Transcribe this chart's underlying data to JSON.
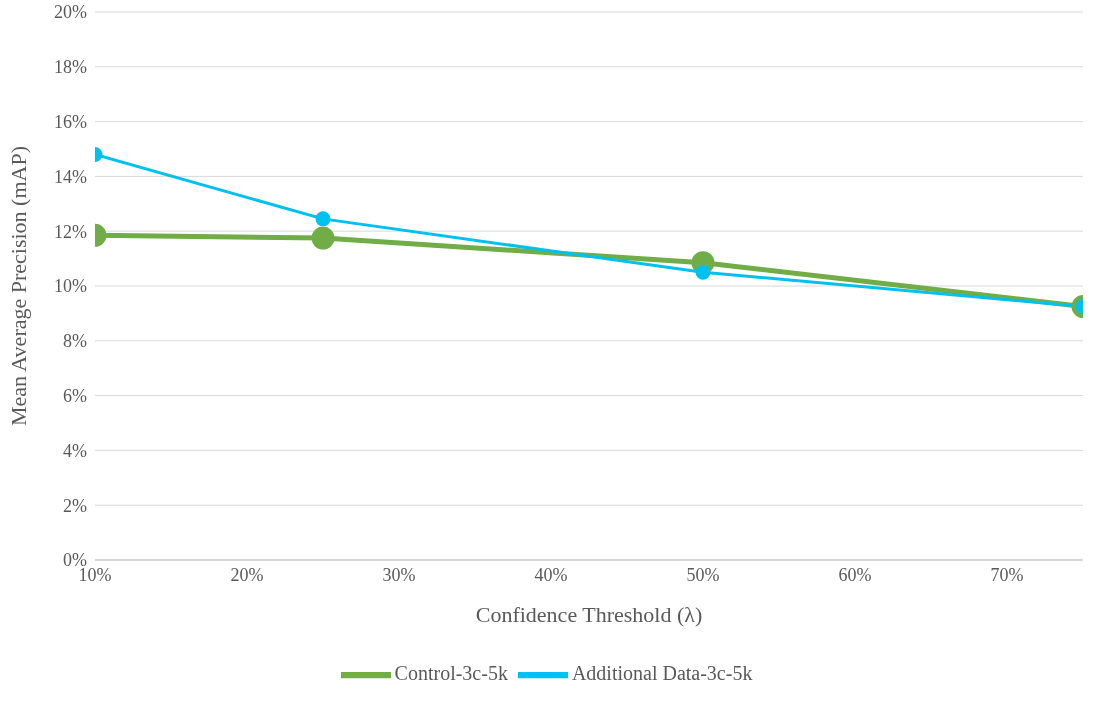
{
  "chart_data": {
    "type": "line",
    "xlabel": "Confidence Threshold (λ)",
    "ylabel": "Mean Average Precision (mAP)",
    "x": [
      10,
      25,
      50,
      75
    ],
    "series": [
      {
        "name": "Control-3c-5k",
        "color": "#70ad47",
        "values": [
          11.85,
          11.75,
          10.85,
          9.25
        ]
      },
      {
        "name": "Additional Data-3c-5k",
        "color": "#00c0f0",
        "values": [
          14.8,
          12.45,
          10.5,
          9.25
        ]
      }
    ],
    "xlim": [
      10,
      75
    ],
    "ylim": [
      0,
      20
    ],
    "xticks": [
      {
        "value": 10,
        "label": "10%"
      },
      {
        "value": 20,
        "label": "20%"
      },
      {
        "value": 30,
        "label": "30%"
      },
      {
        "value": 40,
        "label": "40%"
      },
      {
        "value": 50,
        "label": "50%"
      },
      {
        "value": 60,
        "label": "60%"
      },
      {
        "value": 70,
        "label": "70%"
      }
    ],
    "yticks": [
      {
        "value": 0,
        "label": "0%"
      },
      {
        "value": 2,
        "label": "2%"
      },
      {
        "value": 4,
        "label": "4%"
      },
      {
        "value": 6,
        "label": "6%"
      },
      {
        "value": 8,
        "label": "8%"
      },
      {
        "value": 10,
        "label": "10%"
      },
      {
        "value": 12,
        "label": "12%"
      },
      {
        "value": 14,
        "label": "14%"
      },
      {
        "value": 16,
        "label": "16%"
      },
      {
        "value": 18,
        "label": "18%"
      },
      {
        "value": 20,
        "label": "20%"
      }
    ],
    "grid": "y",
    "legend": "bottom",
    "marker": "circle",
    "line_style": "solid"
  }
}
